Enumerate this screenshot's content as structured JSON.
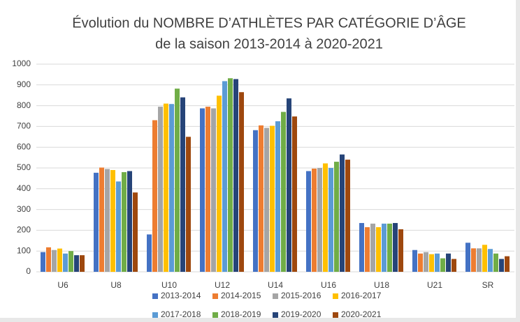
{
  "chart_data": {
    "type": "bar",
    "title": "Évolution du NOMBRE D’ATHLÈTES PAR CATÉGORIE D’ÂGE",
    "subtitle": "de la saison 2013-2014 à 2020-2021",
    "categories": [
      "U6",
      "U8",
      "U10",
      "U12",
      "U14",
      "U16",
      "U18",
      "U21",
      "SR"
    ],
    "series": [
      {
        "name": "2013-2014",
        "color": "#4472c4",
        "values": [
          95,
          477,
          180,
          787,
          682,
          485,
          235,
          105,
          140
        ]
      },
      {
        "name": "2014-2015",
        "color": "#ed7d31",
        "values": [
          118,
          502,
          730,
          795,
          705,
          497,
          215,
          88,
          113
        ]
      },
      {
        "name": "2015-2016",
        "color": "#a5a5a5",
        "values": [
          105,
          495,
          795,
          787,
          693,
          500,
          232,
          95,
          113
        ]
      },
      {
        "name": "2016-2017",
        "color": "#ffc000",
        "values": [
          112,
          490,
          810,
          848,
          703,
          522,
          215,
          85,
          130
        ]
      },
      {
        "name": "2017-2018",
        "color": "#5b9bd5",
        "values": [
          88,
          435,
          808,
          918,
          725,
          500,
          232,
          88,
          110
        ]
      },
      {
        "name": "2018-2019",
        "color": "#70ad47",
        "values": [
          100,
          480,
          882,
          932,
          770,
          530,
          232,
          65,
          88
        ]
      },
      {
        "name": "2019-2020",
        "color": "#264478",
        "values": [
          80,
          485,
          840,
          928,
          835,
          565,
          235,
          88,
          62
        ]
      },
      {
        "name": "2020-2021",
        "color": "#9e480e",
        "values": [
          80,
          382,
          650,
          865,
          748,
          540,
          205,
          62,
          75
        ]
      }
    ],
    "ylim": [
      0,
      1000
    ],
    "yticks": [
      0,
      100,
      200,
      300,
      400,
      500,
      600,
      700,
      800,
      900,
      1000
    ],
    "grid": true,
    "legend": "bottom"
  }
}
